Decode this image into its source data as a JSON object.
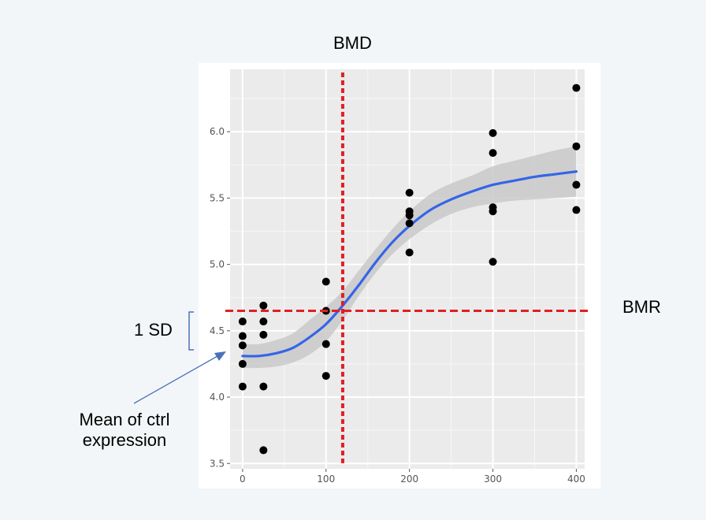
{
  "annotations": {
    "bmd": "BMD",
    "bmr": "BMR",
    "sd": "1 SD",
    "mean_line1": "Mean of ctrl",
    "mean_line2": "expression"
  },
  "colors": {
    "fit_line": "#3465e8",
    "ribbon": "#c9c9c9",
    "points": "#000000",
    "threshold": "#e02020",
    "panel": "#ebebeb",
    "arrow": "#4a72b8"
  },
  "chart_data": {
    "type": "scatter",
    "title": "",
    "xlabel": "",
    "ylabel": "",
    "xlim": [
      -15,
      410
    ],
    "ylim": [
      3.46,
      6.47
    ],
    "x_ticks": [
      0,
      100,
      200,
      300,
      400
    ],
    "y_ticks": [
      3.5,
      4.0,
      4.5,
      5.0,
      5.5,
      6.0
    ],
    "x_tick_labels": [
      "0",
      "100",
      "200",
      "300",
      "400"
    ],
    "y_tick_labels": [
      "3.5",
      "4.0",
      "4.5",
      "5.0",
      "5.5",
      "6.0"
    ],
    "grid": true,
    "points": [
      {
        "x": 0,
        "y": 4.57
      },
      {
        "x": 0,
        "y": 4.46
      },
      {
        "x": 0,
        "y": 4.39
      },
      {
        "x": 0,
        "y": 4.25
      },
      {
        "x": 0,
        "y": 4.08
      },
      {
        "x": 25,
        "y": 4.69
      },
      {
        "x": 25,
        "y": 4.57
      },
      {
        "x": 25,
        "y": 4.47
      },
      {
        "x": 25,
        "y": 4.08
      },
      {
        "x": 25,
        "y": 3.6
      },
      {
        "x": 100,
        "y": 4.87
      },
      {
        "x": 100,
        "y": 4.65
      },
      {
        "x": 100,
        "y": 4.4
      },
      {
        "x": 100,
        "y": 4.16
      },
      {
        "x": 200,
        "y": 5.54
      },
      {
        "x": 200,
        "y": 5.4
      },
      {
        "x": 200,
        "y": 5.37
      },
      {
        "x": 200,
        "y": 5.31
      },
      {
        "x": 200,
        "y": 5.09
      },
      {
        "x": 300,
        "y": 5.99
      },
      {
        "x": 300,
        "y": 5.84
      },
      {
        "x": 300,
        "y": 5.43
      },
      {
        "x": 300,
        "y": 5.4
      },
      {
        "x": 300,
        "y": 5.02
      },
      {
        "x": 400,
        "y": 6.33
      },
      {
        "x": 400,
        "y": 5.89
      },
      {
        "x": 400,
        "y": 5.6
      },
      {
        "x": 400,
        "y": 5.41
      }
    ],
    "fit": {
      "x": [
        0,
        20,
        40,
        60,
        80,
        100,
        120,
        140,
        160,
        180,
        200,
        225,
        250,
        275,
        300,
        325,
        350,
        375,
        400
      ],
      "y": [
        4.31,
        4.31,
        4.33,
        4.37,
        4.45,
        4.55,
        4.69,
        4.85,
        5.02,
        5.17,
        5.29,
        5.41,
        5.49,
        5.55,
        5.6,
        5.63,
        5.66,
        5.68,
        5.7
      ],
      "lower": [
        4.22,
        4.22,
        4.23,
        4.26,
        4.32,
        4.42,
        4.58,
        4.77,
        4.94,
        5.08,
        5.19,
        5.3,
        5.38,
        5.43,
        5.46,
        5.48,
        5.49,
        5.5,
        5.51
      ],
      "upper": [
        4.4,
        4.4,
        4.43,
        4.48,
        4.58,
        4.68,
        4.8,
        4.96,
        5.12,
        5.27,
        5.4,
        5.53,
        5.61,
        5.67,
        5.74,
        5.78,
        5.82,
        5.86,
        5.89
      ]
    },
    "bmd_x": 120,
    "bmr_y": 4.65
  }
}
